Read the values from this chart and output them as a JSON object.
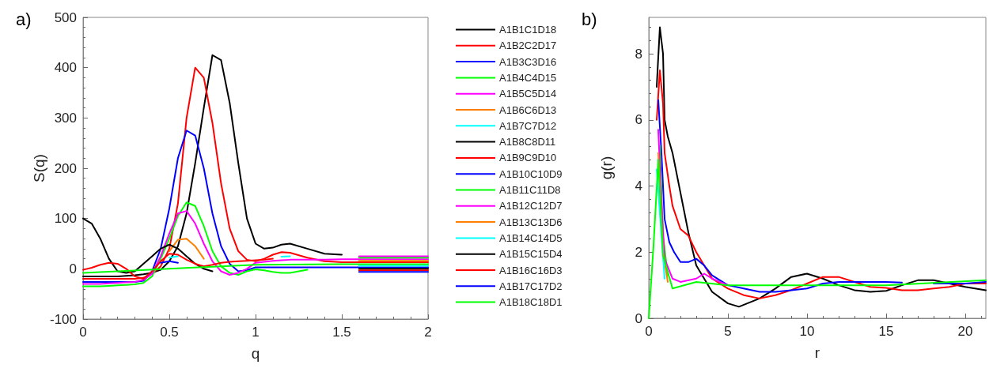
{
  "chart_data": [
    {
      "type": "line",
      "title": "a)",
      "xlabel": "q",
      "ylabel": "S(q)",
      "xlim": [
        0,
        2
      ],
      "xticks": [
        0,
        0.5,
        1,
        1.5,
        2
      ],
      "ylim": [
        -100,
        500
      ],
      "yticks": [
        -100,
        0,
        100,
        200,
        300,
        400,
        500
      ],
      "grid": false,
      "legend": "right",
      "marker": "none",
      "line_style": "solid",
      "x": [
        0,
        0.05,
        0.1,
        0.15,
        0.2,
        0.25,
        0.3,
        0.35,
        0.4,
        0.45,
        0.5,
        0.55,
        0.6,
        0.65,
        0.7,
        0.75,
        0.8,
        0.85,
        0.9,
        0.95,
        1,
        1.05,
        1.1,
        1.15,
        1.2,
        1.3,
        1.4,
        1.5,
        1.6,
        1.7,
        1.8,
        1.9,
        2
      ],
      "series": [
        {
          "name": "A1B1C1D18",
          "color": "#000000",
          "values": [
            -15,
            -15,
            -15,
            -15,
            -15,
            -14,
            -13,
            -11,
            -8,
            -2,
            15,
            45,
            110,
            210,
            320,
            425,
            415,
            330,
            210,
            100,
            50,
            40,
            42,
            48,
            50,
            40,
            30,
            28,
            null,
            null,
            null,
            null,
            null
          ]
        },
        {
          "name": "A1B2C2D17",
          "color": "#ff0000",
          "values": [
            -20,
            -20,
            -20,
            -20,
            -20,
            -20,
            -20,
            -18,
            -10,
            5,
            40,
            130,
            300,
            400,
            380,
            290,
            170,
            80,
            35,
            18,
            15,
            20,
            28,
            33,
            32,
            22,
            15,
            13,
            13,
            13,
            13,
            13,
            13
          ]
        },
        {
          "name": "A1B3C3D16",
          "color": "#0000ff",
          "values": [
            -26,
            -26,
            -26,
            -26,
            -26,
            -26,
            -26,
            -24,
            -5,
            40,
            120,
            220,
            275,
            265,
            200,
            110,
            45,
            10,
            -5,
            -3,
            3,
            3,
            3,
            3,
            3,
            3,
            3,
            3,
            3,
            3,
            3,
            3,
            3
          ]
        },
        {
          "name": "A1B4C4D15",
          "color": "#00ff00",
          "values": [
            -35,
            -35,
            -35,
            -34,
            -33,
            -32,
            -31,
            -28,
            -15,
            20,
            60,
            105,
            132,
            125,
            85,
            35,
            5,
            -8,
            -12,
            -5,
            -1,
            -3,
            -6,
            -8,
            -8,
            -2,
            null,
            null,
            null,
            null,
            null,
            null,
            null
          ]
        },
        {
          "name": "A1B5C5D14",
          "color": "#ff00ff",
          "values": [
            -30,
            -30,
            -30,
            -29,
            -28,
            -27,
            -26,
            -22,
            -10,
            25,
            70,
            110,
            115,
            90,
            50,
            15,
            -5,
            -12,
            -8,
            0,
            12,
            14,
            16,
            17,
            18,
            18,
            18,
            19,
            19,
            19,
            19,
            19,
            19
          ]
        },
        {
          "name": "A1B6C6D13",
          "color": "#ff8000",
          "values": [
            null,
            null,
            null,
            null,
            null,
            null,
            null,
            null,
            null,
            null,
            35,
            58,
            60,
            45,
            20,
            null,
            null,
            null,
            null,
            null,
            null,
            null,
            null,
            null,
            null,
            null,
            null,
            null,
            null,
            null,
            null,
            null,
            null
          ]
        },
        {
          "name": "A1B7C7D12",
          "color": "#00ffff",
          "values": [
            null,
            null,
            null,
            null,
            null,
            null,
            null,
            null,
            null,
            null,
            22,
            25,
            null,
            null,
            null,
            null,
            null,
            null,
            null,
            null,
            null,
            null,
            null,
            24,
            25,
            null,
            null,
            null,
            null,
            null,
            null,
            null,
            null
          ]
        },
        {
          "name": "A1B8C8D11",
          "color": "#000000",
          "values": [
            100,
            90,
            60,
            20,
            -5,
            -8,
            -5,
            10,
            25,
            40,
            48,
            40,
            25,
            10,
            0,
            -5,
            null,
            null,
            null,
            null,
            null,
            null,
            null,
            null,
            null,
            null,
            null,
            null,
            null,
            null,
            null,
            null,
            null
          ]
        },
        {
          "name": "A1B9C9D10",
          "color": "#ff0000",
          "values": [
            -2,
            2,
            8,
            12,
            10,
            0,
            -15,
            -20,
            -5,
            15,
            30,
            28,
            18,
            10,
            5,
            8,
            12,
            14,
            15,
            16,
            17,
            18,
            20,
            null,
            null,
            null,
            null,
            null,
            null,
            null,
            null,
            null,
            null
          ]
        },
        {
          "name": "A1B10C10D9",
          "color": "#0000ff",
          "values": [
            null,
            null,
            null,
            null,
            null,
            null,
            null,
            null,
            null,
            12,
            15,
            12,
            null,
            null,
            null,
            null,
            null,
            null,
            null,
            null,
            null,
            null,
            null,
            null,
            null,
            null,
            null,
            null,
            null,
            null,
            null,
            null,
            null
          ]
        },
        {
          "name": "A1B11C11D8",
          "color": "#00ff00",
          "x": [
            1.6,
            2
          ],
          "values": [
            22,
            22
          ]
        },
        {
          "name": "A1B12C12D7",
          "color": "#ff00ff",
          "x": [
            1.6,
            2
          ],
          "values": [
            25,
            25
          ]
        },
        {
          "name": "A1B13C13D6",
          "color": "#ff8000",
          "x": [
            1.6,
            2
          ],
          "values": [
            16,
            16
          ]
        },
        {
          "name": "A1B14C14D5",
          "color": "#00ffff",
          "x": [
            1.6,
            2
          ],
          "values": [
            6,
            6
          ]
        },
        {
          "name": "A1B15C15D4",
          "color": "#000000",
          "x": [
            1.6,
            2
          ],
          "values": [
            0,
            0
          ]
        },
        {
          "name": "A1B16C16D3",
          "color": "#ff0000",
          "x": [
            1.6,
            2
          ],
          "values": [
            -3,
            -3
          ]
        },
        {
          "name": "A1B17C17D2",
          "color": "#0000ff",
          "x": [
            1.6,
            2
          ],
          "values": [
            -6,
            -6
          ]
        },
        {
          "name": "A1B18C18D1",
          "color": "#00ff00",
          "x": [
            0,
            0.25,
            0.5,
            0.75,
            1,
            1.5,
            2
          ],
          "values": [
            -8,
            -4,
            0,
            4,
            8,
            9,
            9
          ]
        }
      ]
    },
    {
      "type": "line",
      "title": "b)",
      "xlabel": "r",
      "ylabel": "g(r)",
      "xlim": [
        0,
        21.3
      ],
      "xticks": [
        0,
        5,
        10,
        15,
        20
      ],
      "ylim": [
        0,
        9.1
      ],
      "yticks": [
        0,
        2,
        4,
        6,
        8
      ],
      "grid": false,
      "legend": false,
      "marker": "none",
      "line_style": "solid",
      "series": [
        {
          "color": "#000000",
          "x": [
            0.5,
            0.7,
            0.9,
            1,
            1.2,
            1.5,
            2,
            2.5,
            3,
            4,
            5,
            5.7,
            7,
            8,
            9,
            10,
            11,
            12,
            13,
            14,
            15,
            16,
            17,
            18,
            19,
            20,
            21.3
          ],
          "values": [
            7,
            8.8,
            8,
            6,
            5.5,
            5,
            3.8,
            2.6,
            1.6,
            0.8,
            0.45,
            0.35,
            0.6,
            0.9,
            1.25,
            1.35,
            1.2,
            1,
            0.85,
            0.8,
            0.83,
            1,
            1.15,
            1.15,
            1.05,
            0.95,
            0.85
          ]
        },
        {
          "color": "#ff0000",
          "x": [
            0.5,
            0.7,
            0.9,
            1,
            1.3,
            1.5,
            2,
            2.5,
            3,
            3.5,
            4,
            5,
            6,
            7,
            8,
            9,
            10,
            11,
            12,
            13,
            14,
            15,
            16,
            17,
            18,
            19,
            20,
            21.3
          ],
          "values": [
            6,
            7.5,
            6.5,
            5,
            4,
            3.4,
            2.7,
            2.5,
            2,
            1.6,
            1.2,
            0.9,
            0.7,
            0.6,
            0.7,
            0.85,
            1.05,
            1.25,
            1.25,
            1.1,
            0.95,
            0.92,
            0.85,
            0.85,
            0.9,
            0.95,
            1.05,
            1.05
          ]
        },
        {
          "color": "#0000ff",
          "x": [
            0.6,
            0.8,
            1,
            1.3,
            1.6,
            2,
            2.5,
            3,
            3.5,
            4,
            5,
            6,
            7,
            8,
            9,
            10,
            11,
            12,
            13,
            14,
            15,
            16,
            17,
            18,
            19,
            20,
            21.3
          ],
          "values": [
            6.6,
            5,
            3,
            2.3,
            2,
            1.7,
            1.7,
            1.8,
            1.6,
            1.3,
            1,
            0.9,
            0.8,
            0.8,
            0.85,
            0.9,
            1.05,
            1.1,
            1.1,
            1.1,
            1.1,
            1.08,
            null,
            1.05,
            1.05,
            1.05,
            1.1
          ]
        },
        {
          "color": "#00ff00",
          "x": [
            0.7,
            0.9,
            1.2
          ],
          "values": [
            5.2,
            2.5,
            1.3
          ]
        },
        {
          "color": "#ff00ff",
          "x": [
            0.6,
            0.8,
            1,
            1.5,
            2,
            3,
            3.5,
            4,
            5
          ],
          "values": [
            5.7,
            3.5,
            1.8,
            1.2,
            1.1,
            1.2,
            1.35,
            1.2,
            1
          ]
        },
        {
          "color": "#ff8000",
          "x": [
            0.6,
            0.9,
            1.2
          ],
          "values": [
            5,
            2,
            1.1
          ]
        },
        {
          "color": "#00ffff",
          "x": [
            0.5,
            1
          ],
          "values": [
            4.5,
            1.2
          ]
        },
        {
          "color": "#00ff00",
          "x": [
            0,
            0.3,
            0.6,
            0.9,
            1.5,
            3,
            5,
            10,
            15,
            21.3
          ],
          "values": [
            0,
            2.2,
            4.8,
            1.9,
            0.9,
            1.1,
            1,
            1,
            1,
            1.15
          ]
        }
      ]
    }
  ]
}
